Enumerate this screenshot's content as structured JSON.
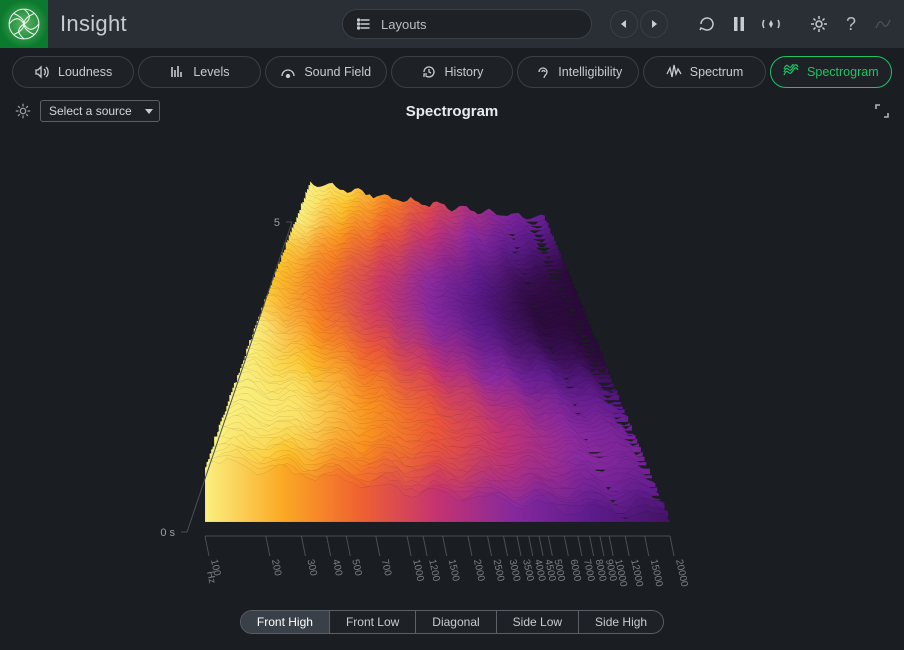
{
  "app": {
    "title": "Insight"
  },
  "header": {
    "layouts_label": "Layouts",
    "icons": {
      "prev": "◀",
      "next": "▶",
      "reset": "reset-icon",
      "pause": "pause-icon",
      "broadcast": "broadcast-icon",
      "settings": "gear-icon",
      "help": "?",
      "disabled": "signal-icon"
    }
  },
  "tabs": [
    {
      "id": "loudness",
      "label": "Loudness",
      "icon": "speaker-icon"
    },
    {
      "id": "levels",
      "label": "Levels",
      "icon": "bars-icon"
    },
    {
      "id": "soundfield",
      "label": "Sound Field",
      "icon": "arc-icon"
    },
    {
      "id": "history",
      "label": "History",
      "icon": "history-icon"
    },
    {
      "id": "intelligibility",
      "label": "Intelligibility",
      "icon": "ear-icon"
    },
    {
      "id": "spectrum",
      "label": "Spectrum",
      "icon": "wave-icon"
    },
    {
      "id": "spectrogram",
      "label": "Spectrogram",
      "icon": "waterfall-icon",
      "active": true
    }
  ],
  "panel": {
    "title": "Spectrogram",
    "source_placeholder": "Select a source"
  },
  "spectrogram": {
    "type": "3d-spectrogram",
    "view": "Front High",
    "background_color": "#1a1d21",
    "color_stops": [
      {
        "t": 0.0,
        "hex": "#2a0a3a"
      },
      {
        "t": 0.15,
        "hex": "#5a1a8a"
      },
      {
        "t": 0.3,
        "hex": "#8a2aa0"
      },
      {
        "t": 0.45,
        "hex": "#c8346e"
      },
      {
        "t": 0.6,
        "hex": "#ef5a33"
      },
      {
        "t": 0.75,
        "hex": "#fa8f1e"
      },
      {
        "t": 0.88,
        "hex": "#fcc22a"
      },
      {
        "t": 1.0,
        "hex": "#faf080"
      }
    ],
    "time_axis": {
      "label": "s",
      "ticks": [
        0,
        5
      ]
    },
    "freq_axis": {
      "label": "Hz",
      "ticks": [
        100,
        200,
        300,
        400,
        500,
        700,
        1000,
        1200,
        1500,
        2000,
        2500,
        3000,
        3500,
        4000,
        4500,
        5000,
        6000,
        7000,
        8000,
        9000,
        10000,
        12000,
        15000,
        20000
      ]
    },
    "views": [
      "Front High",
      "Front Low",
      "Diagonal",
      "Side Low",
      "Side High"
    ]
  }
}
